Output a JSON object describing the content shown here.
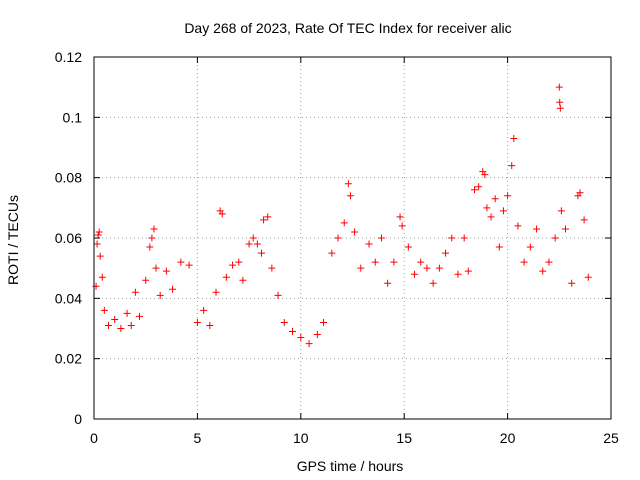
{
  "chart_data": {
    "type": "scatter",
    "title": "Day 268 of 2023, Rate Of TEC Index for receiver alic",
    "xlabel": "GPS time / hours",
    "ylabel": "ROTI / TECUs",
    "xlim": [
      0,
      25
    ],
    "ylim": [
      0,
      0.12
    ],
    "xticks": [
      0,
      5,
      10,
      15,
      20,
      25
    ],
    "xtick_labels": [
      "0",
      "5",
      "10",
      "15",
      "20",
      "25"
    ],
    "yticks": [
      0,
      0.02,
      0.04,
      0.06,
      0.08,
      0.1,
      0.12
    ],
    "ytick_labels": [
      "0",
      "0.02",
      "0.04",
      "0.06",
      "0.08",
      "0.1",
      "0.12"
    ],
    "grid": true,
    "marker": "plus",
    "color": "#ff0000",
    "series": [
      {
        "points": [
          [
            0.1,
            0.044
          ],
          [
            0.15,
            0.058
          ],
          [
            0.2,
            0.061
          ],
          [
            0.25,
            0.062
          ],
          [
            0.3,
            0.054
          ],
          [
            0.4,
            0.047
          ],
          [
            0.5,
            0.036
          ],
          [
            0.7,
            0.031
          ],
          [
            1.0,
            0.033
          ],
          [
            1.3,
            0.03
          ],
          [
            1.6,
            0.035
          ],
          [
            1.8,
            0.031
          ],
          [
            2.0,
            0.042
          ],
          [
            2.2,
            0.034
          ],
          [
            2.5,
            0.046
          ],
          [
            2.7,
            0.057
          ],
          [
            2.8,
            0.06
          ],
          [
            2.9,
            0.063
          ],
          [
            3.0,
            0.05
          ],
          [
            3.2,
            0.041
          ],
          [
            3.5,
            0.049
          ],
          [
            3.8,
            0.043
          ],
          [
            4.2,
            0.052
          ],
          [
            4.6,
            0.051
          ],
          [
            5.0,
            0.032
          ],
          [
            5.3,
            0.036
          ],
          [
            5.6,
            0.031
          ],
          [
            5.9,
            0.042
          ],
          [
            6.1,
            0.069
          ],
          [
            6.2,
            0.068
          ],
          [
            6.4,
            0.047
          ],
          [
            6.7,
            0.051
          ],
          [
            7.0,
            0.052
          ],
          [
            7.2,
            0.046
          ],
          [
            7.5,
            0.058
          ],
          [
            7.7,
            0.06
          ],
          [
            7.9,
            0.058
          ],
          [
            8.1,
            0.055
          ],
          [
            8.2,
            0.066
          ],
          [
            8.4,
            0.067
          ],
          [
            8.6,
            0.05
          ],
          [
            8.9,
            0.041
          ],
          [
            9.2,
            0.032
          ],
          [
            9.6,
            0.029
          ],
          [
            10.0,
            0.027
          ],
          [
            10.4,
            0.025
          ],
          [
            10.8,
            0.028
          ],
          [
            11.1,
            0.032
          ],
          [
            11.5,
            0.055
          ],
          [
            11.8,
            0.06
          ],
          [
            12.1,
            0.065
          ],
          [
            12.3,
            0.078
          ],
          [
            12.4,
            0.074
          ],
          [
            12.6,
            0.062
          ],
          [
            12.9,
            0.05
          ],
          [
            13.3,
            0.058
          ],
          [
            13.6,
            0.052
          ],
          [
            13.9,
            0.06
          ],
          [
            14.2,
            0.045
          ],
          [
            14.5,
            0.052
          ],
          [
            14.8,
            0.067
          ],
          [
            14.9,
            0.064
          ],
          [
            15.2,
            0.057
          ],
          [
            15.5,
            0.048
          ],
          [
            15.8,
            0.052
          ],
          [
            16.1,
            0.05
          ],
          [
            16.4,
            0.045
          ],
          [
            16.7,
            0.05
          ],
          [
            17.0,
            0.055
          ],
          [
            17.3,
            0.06
          ],
          [
            17.6,
            0.048
          ],
          [
            17.9,
            0.06
          ],
          [
            18.1,
            0.049
          ],
          [
            18.4,
            0.076
          ],
          [
            18.6,
            0.077
          ],
          [
            18.8,
            0.082
          ],
          [
            18.9,
            0.081
          ],
          [
            19.0,
            0.07
          ],
          [
            19.2,
            0.067
          ],
          [
            19.4,
            0.073
          ],
          [
            19.6,
            0.057
          ],
          [
            19.8,
            0.069
          ],
          [
            20.0,
            0.074
          ],
          [
            20.2,
            0.084
          ],
          [
            20.3,
            0.093
          ],
          [
            20.5,
            0.064
          ],
          [
            20.8,
            0.052
          ],
          [
            21.1,
            0.057
          ],
          [
            21.4,
            0.063
          ],
          [
            21.7,
            0.049
          ],
          [
            22.0,
            0.052
          ],
          [
            22.3,
            0.06
          ],
          [
            22.5,
            0.11
          ],
          [
            22.52,
            0.105
          ],
          [
            22.55,
            0.103
          ],
          [
            22.6,
            0.069
          ],
          [
            22.8,
            0.063
          ],
          [
            23.1,
            0.045
          ],
          [
            23.4,
            0.074
          ],
          [
            23.5,
            0.075
          ],
          [
            23.7,
            0.066
          ],
          [
            23.9,
            0.047
          ]
        ]
      }
    ]
  }
}
